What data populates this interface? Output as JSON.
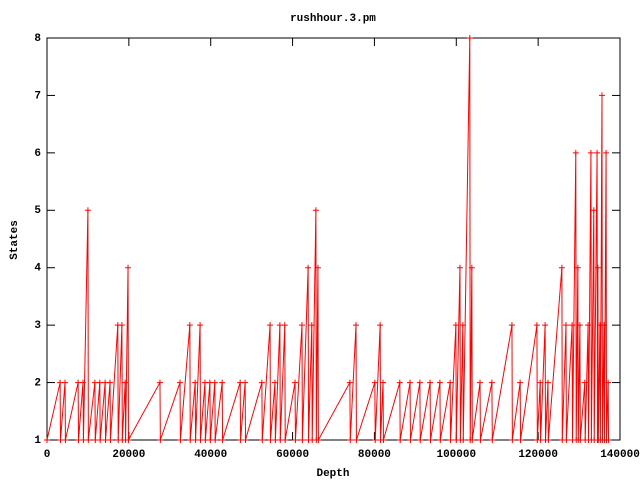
{
  "chart_data": {
    "type": "line",
    "title": "rushhour.3.pm",
    "x_label": "Depth",
    "y_label": "States",
    "xlim": [
      0,
      140000
    ],
    "xticks": [
      0,
      20000,
      40000,
      60000,
      80000,
      100000,
      120000,
      140000
    ],
    "ylim": [
      1,
      8
    ],
    "yticks": [
      1,
      2,
      3,
      4,
      5,
      6,
      7,
      8
    ],
    "grid": false,
    "series": [
      {
        "color": "#ff0000",
        "x": [
          0,
          3200,
          3300,
          4400,
          4500,
          7600,
          7700,
          8800,
          8900,
          10000,
          10100,
          11700,
          11800,
          12900,
          13000,
          14200,
          14300,
          15400,
          15500,
          17300,
          17400,
          18300,
          18400,
          19100,
          19200,
          19800,
          19900,
          27600,
          27700,
          32500,
          32600,
          34900,
          35000,
          36200,
          36300,
          37400,
          37500,
          38600,
          38700,
          39800,
          39900,
          41000,
          41100,
          42800,
          42900,
          47200,
          47300,
          48400,
          48500,
          52500,
          52600,
          54500,
          54600,
          55700,
          55800,
          56900,
          57000,
          58100,
          58200,
          60600,
          60700,
          62300,
          62400,
          63800,
          63900,
          64700,
          64800,
          65700,
          65800,
          66200,
          66300,
          74000,
          74100,
          75500,
          75600,
          80100,
          80200,
          81400,
          81500,
          82100,
          82200,
          86200,
          86300,
          88700,
          88800,
          91100,
          91200,
          93600,
          93700,
          96000,
          96100,
          98500,
          98600,
          99900,
          100000,
          100900,
          101000,
          101600,
          101700,
          103300,
          103400,
          103800,
          103900,
          105800,
          105900,
          108700,
          108800,
          113600,
          113700,
          115600,
          115700,
          119700,
          119800,
          120500,
          120600,
          121700,
          121800,
          122400,
          122500,
          125800,
          125900,
          126800,
          126900,
          128300,
          128400,
          129200,
          129300,
          129700,
          129800,
          130200,
          130300,
          131400,
          131500,
          132200,
          132300,
          132900,
          133000,
          133600,
          133700,
          134400,
          134500,
          134600,
          134700,
          135100,
          135200,
          135600,
          135700,
          136100,
          136200,
          136600,
          136700,
          137100,
          137200
        ],
        "values": [
          1,
          2,
          1,
          2,
          1,
          2,
          1,
          2,
          1,
          5,
          1,
          2,
          1,
          2,
          1,
          2,
          1,
          2,
          1,
          3,
          1,
          3,
          1,
          2,
          1,
          4,
          1,
          2,
          1,
          2,
          1,
          3,
          1,
          2,
          1,
          3,
          1,
          2,
          1,
          2,
          1,
          2,
          1,
          2,
          1,
          2,
          1,
          2,
          1,
          2,
          1,
          3,
          1,
          2,
          1,
          3,
          1,
          3,
          1,
          2,
          1,
          3,
          1,
          4,
          1,
          3,
          1,
          5,
          1,
          4,
          1,
          2,
          1,
          3,
          1,
          2,
          1,
          3,
          1,
          2,
          1,
          2,
          1,
          2,
          1,
          2,
          1,
          2,
          1,
          2,
          1,
          2,
          1,
          3,
          1,
          4,
          1,
          3,
          1,
          8,
          1,
          4,
          1,
          2,
          1,
          2,
          1,
          3,
          1,
          2,
          1,
          3,
          1,
          2,
          1,
          3,
          1,
          2,
          1,
          4,
          1,
          3,
          1,
          3,
          1,
          6,
          1,
          4,
          1,
          3,
          1,
          2,
          1,
          3,
          1,
          6,
          1,
          5,
          1,
          6,
          1,
          4,
          1,
          3,
          1,
          7,
          1,
          3,
          1,
          6,
          1,
          2,
          1
        ]
      }
    ]
  }
}
